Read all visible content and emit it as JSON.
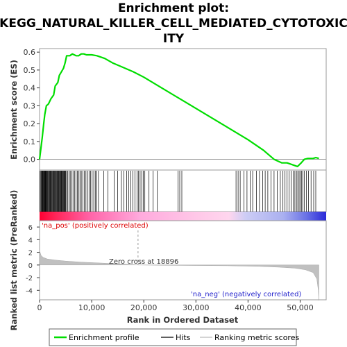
{
  "chart_data": {
    "type": "line",
    "title": "Enrichment plot:\nKEGG_NATURAL_KILLER_CELL_MEDIATED_CYTOTOXIC\nITY",
    "title_lines": [
      "Enrichment plot:",
      "KEGG_NATURAL_KILLER_CELL_MEDIATED_CYTOTOXIC",
      "ITY"
    ],
    "xlabel": "Rank in Ordered Dataset",
    "es_ylabel": "Enrichment score (ES)",
    "metric_ylabel": "Ranked list metric (PreRanked)",
    "xlim": [
      0,
      55000
    ],
    "x_ticks": [
      0,
      10000,
      20000,
      30000,
      40000,
      50000
    ],
    "x_tick_labels": [
      "0",
      "10,000",
      "20,000",
      "30,000",
      "40,000",
      "50,000"
    ],
    "es_ylim": [
      -0.06,
      0.62
    ],
    "es_ticks": [
      0.0,
      0.1,
      0.2,
      0.3,
      0.4,
      0.5,
      0.6
    ],
    "es_tick_labels": [
      "0.0",
      "0.1",
      "0.2",
      "0.3",
      "0.4",
      "0.5",
      "0.6"
    ],
    "metric_ylim": [
      -5.5,
      7
    ],
    "metric_ticks": [
      -4,
      -2,
      0,
      2,
      4,
      6
    ],
    "metric_tick_labels": [
      "-4",
      "-2",
      "0",
      "2",
      "4",
      "6"
    ],
    "zero_cross": 18896,
    "zero_cross_label": "Zero cross at 18896",
    "pos_label": "'na_pos' (positively correlated)",
    "neg_label": "'na_neg' (negatively correlated)",
    "n_genes": 53600,
    "series": [
      {
        "name": "Enrichment profile",
        "color": "#00dd00",
        "points": [
          [
            0,
            0.0
          ],
          [
            250,
            0.06
          ],
          [
            500,
            0.12
          ],
          [
            800,
            0.2
          ],
          [
            1000,
            0.25
          ],
          [
            1300,
            0.3
          ],
          [
            1700,
            0.31
          ],
          [
            2200,
            0.34
          ],
          [
            2700,
            0.36
          ],
          [
            3000,
            0.41
          ],
          [
            3500,
            0.43
          ],
          [
            3800,
            0.47
          ],
          [
            4200,
            0.49
          ],
          [
            4600,
            0.51
          ],
          [
            4900,
            0.54
          ],
          [
            5200,
            0.58
          ],
          [
            5800,
            0.58
          ],
          [
            6300,
            0.59
          ],
          [
            7000,
            0.58
          ],
          [
            7500,
            0.58
          ],
          [
            8000,
            0.59
          ],
          [
            8500,
            0.59
          ],
          [
            9000,
            0.585
          ],
          [
            10000,
            0.585
          ],
          [
            11000,
            0.58
          ],
          [
            12500,
            0.565
          ],
          [
            14000,
            0.54
          ],
          [
            16000,
            0.515
          ],
          [
            18000,
            0.49
          ],
          [
            20000,
            0.46
          ],
          [
            24000,
            0.39
          ],
          [
            28000,
            0.32
          ],
          [
            32000,
            0.25
          ],
          [
            36000,
            0.18
          ],
          [
            40000,
            0.11
          ],
          [
            43000,
            0.05
          ],
          [
            45000,
            0.0
          ],
          [
            46500,
            -0.02
          ],
          [
            47500,
            -0.02
          ],
          [
            48500,
            -0.03
          ],
          [
            49500,
            -0.04
          ],
          [
            50200,
            -0.02
          ],
          [
            50800,
            0.0
          ],
          [
            51500,
            0.005
          ],
          [
            52500,
            0.005
          ],
          [
            53000,
            0.01
          ],
          [
            53600,
            0.005
          ]
        ]
      }
    ],
    "hit_ranks": [
      120,
      260,
      380,
      470,
      560,
      650,
      730,
      820,
      900,
      990,
      1080,
      1160,
      1240,
      1340,
      1450,
      1560,
      1680,
      1790,
      1900,
      2010,
      2120,
      2240,
      2350,
      2460,
      2570,
      2690,
      2800,
      2920,
      3030,
      3150,
      3260,
      3370,
      3480,
      3590,
      3700,
      3810,
      3920,
      4030,
      4140,
      4250,
      4360,
      4470,
      4580,
      4690,
      4800,
      4910,
      5020,
      5200,
      5420,
      5640,
      5880,
      6150,
      6420,
      6700,
      7000,
      7250,
      7500,
      7750,
      8000,
      8300,
      8600,
      8900,
      9200,
      9500,
      9800,
      10100,
      10400,
      10700,
      11000,
      11300,
      12300,
      13100,
      14300,
      15000,
      15700,
      16200,
      16700,
      17100,
      17500,
      17900,
      18300,
      18700,
      19000,
      19300,
      19600,
      19900,
      20200,
      21000,
      21800,
      22600,
      26600,
      26900,
      27300,
      37700,
      38100,
      38500,
      39200,
      39800,
      40400,
      40900,
      41600,
      42200,
      42800,
      43300,
      43800,
      44400,
      45000,
      45600,
      46200,
      46700,
      47100,
      47500,
      47900,
      48300,
      48700,
      49000,
      49300,
      49550,
      49800,
      50050,
      50300,
      50550,
      50800,
      51200,
      51600,
      52100,
      52600,
      53000
    ],
    "metric_profile": [
      [
        0,
        2.4
      ],
      [
        100,
        2.0
      ],
      [
        300,
        1.5
      ],
      [
        700,
        1.2
      ],
      [
        1500,
        0.95
      ],
      [
        3000,
        0.78
      ],
      [
        5000,
        0.62
      ],
      [
        8000,
        0.45
      ],
      [
        12000,
        0.3
      ],
      [
        16000,
        0.15
      ],
      [
        18896,
        0.0
      ],
      [
        24000,
        -0.05
      ],
      [
        30000,
        -0.08
      ],
      [
        36000,
        -0.12
      ],
      [
        42000,
        -0.22
      ],
      [
        46000,
        -0.35
      ],
      [
        49000,
        -0.5
      ],
      [
        51000,
        -0.75
      ],
      [
        52500,
        -1.2
      ],
      [
        53200,
        -2.2
      ],
      [
        53500,
        -4.0
      ],
      [
        53600,
        -5.6
      ]
    ],
    "legend": [
      {
        "label": "Enrichment profile",
        "color": "#00dd00"
      },
      {
        "label": "Hits",
        "color": "#000000"
      },
      {
        "label": "Ranking metric scores",
        "color": "#bbbbbb"
      }
    ]
  }
}
